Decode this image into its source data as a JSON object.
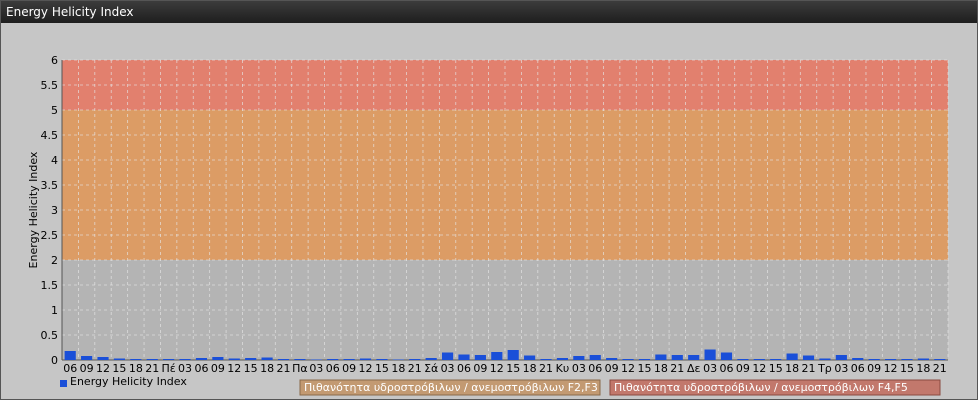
{
  "window": {
    "title": "Energy Helicity Index"
  },
  "legend": {
    "series_label": "Energy Helicity Index",
    "band1_label": "Πιθανότητα υδροστρόβιλων / ανεμοστρόβιλων F2,F3",
    "band2_label": "Πιθανότητα υδροστρόβιλων / ανεμοστρόβιλων F4,F5"
  },
  "colors": {
    "plot_bg": "#b4b4b4",
    "band_orange": "#dc9c65",
    "band_red": "#e2806e",
    "bar": "#1a4fd8",
    "band1_legend": "#c39a72",
    "band2_legend": "#c2786c"
  },
  "chart_data": {
    "type": "bar",
    "ylabel": "Energy Helicity Index",
    "ylim": [
      0,
      6
    ],
    "yticks": [
      "0",
      "0.5",
      "1",
      "1.5",
      "2",
      "2.5",
      "3",
      "3.5",
      "4",
      "4.5",
      "5",
      "5.5",
      "6"
    ],
    "grid": true,
    "bands": [
      {
        "from": 2,
        "to": 5,
        "label": "Πιθανότητα υδροστρόβιλων / ανεμοστρόβιλων F2,F3"
      },
      {
        "from": 5,
        "to": 6,
        "label": "Πιθανότητα υδροστρόβιλων / ανεμοστρόβιλων F4,F5"
      }
    ],
    "categories": [
      "06",
      "09",
      "12",
      "15",
      "18",
      "21",
      "Πέ",
      "03",
      "06",
      "09",
      "12",
      "15",
      "18",
      "21",
      "Πα",
      "03",
      "06",
      "09",
      "12",
      "15",
      "18",
      "21",
      "Σά",
      "03",
      "06",
      "09",
      "12",
      "15",
      "18",
      "21",
      "Κυ",
      "03",
      "06",
      "09",
      "12",
      "15",
      "18",
      "21",
      "Δε",
      "03",
      "06",
      "09",
      "12",
      "15",
      "18",
      "21",
      "Τρ",
      "03",
      "06",
      "09",
      "12",
      "15",
      "18",
      "21"
    ],
    "series": [
      {
        "name": "Energy Helicity Index",
        "values": [
          0.18,
          0.08,
          0.06,
          0.03,
          0.02,
          0.02,
          0.02,
          0.02,
          0.04,
          0.06,
          0.03,
          0.04,
          0.05,
          0.02,
          0.02,
          0.01,
          0.02,
          0.02,
          0.03,
          0.02,
          0.01,
          0.02,
          0.04,
          0.15,
          0.11,
          0.1,
          0.16,
          0.2,
          0.09,
          0.02,
          0.04,
          0.08,
          0.1,
          0.04,
          0.02,
          0.02,
          0.11,
          0.1,
          0.1,
          0.21,
          0.15,
          0.02,
          0.02,
          0.02,
          0.13,
          0.09,
          0.03,
          0.1,
          0.04,
          0.02,
          0.02,
          0.02,
          0.03,
          0.02
        ]
      }
    ]
  }
}
